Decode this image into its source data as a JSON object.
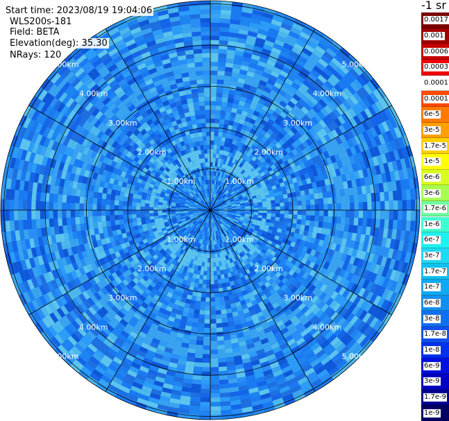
{
  "header": {
    "start_time": "Start time: 2023/08/19 19:04:06",
    "instrument": "WLS200s-181",
    "field": "Field: BETA",
    "elevation": "Elevation(deg): 35.30",
    "nrays": "NRays: 120"
  },
  "units": "-1 sr",
  "range_labels": [
    "1.00km",
    "2.00km",
    "3.00km",
    "4.00km",
    "5.00km"
  ],
  "colorbar": {
    "labels": [
      "0.0017",
      "0.001",
      "0.0006",
      "0.0003",
      "0.00017",
      "0.0001",
      "6e-5",
      "3e-5",
      "1.7e-5",
      "1e-5",
      "6e-6",
      "3e-6",
      "1.7e-6",
      "1e-6",
      "6e-7",
      "3e-7",
      "1.7e-7",
      "1e-7",
      "6e-8",
      "3e-8",
      "1.7e-8",
      "1e-8",
      "6e-9",
      "3e-9",
      "1.7e-9",
      "1e-9"
    ],
    "colors": [
      "#7a0000",
      "#a00000",
      "#c80000",
      "#f00000",
      "#ffffff",
      "#ff4a00",
      "#ff7a00",
      "#ffa000",
      "#ffd000",
      "#ffff00",
      "#d8ff20",
      "#a8ff50",
      "#70ffa0",
      "#40ffd0",
      "#20f0f0",
      "#20d8f0",
      "#10c0f0",
      "#10a8f0",
      "#1090f0",
      "#1070f0",
      "#1050f0",
      "#0030f0",
      "#0010e0",
      "#0000c0",
      "#000090",
      "#000060"
    ]
  }
}
